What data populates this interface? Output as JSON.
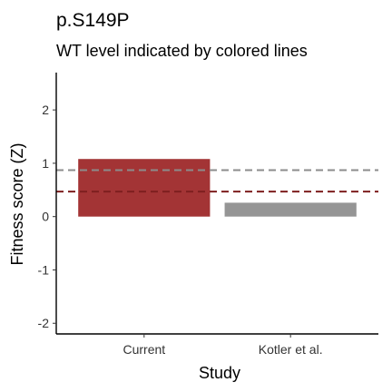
{
  "chart_data": {
    "type": "bar",
    "title": "p.S149P",
    "subtitle": "WT level indicated by colored lines",
    "xlabel": "Study",
    "ylabel": "Fitness score (Z)",
    "categories": [
      "Current",
      "Kotler et al."
    ],
    "values": [
      1.08,
      0.26
    ],
    "bar_colors": [
      "#a33435",
      "#959595"
    ],
    "ylim": [
      -2.2,
      2.7
    ],
    "yticks": [
      -2,
      -1,
      0,
      1,
      2
    ],
    "reference_lines": [
      {
        "value": 0.87,
        "color": "#8c8c8c"
      },
      {
        "value": 0.47,
        "color": "#7e1f1f"
      }
    ],
    "grid": false,
    "legend": "none"
  }
}
